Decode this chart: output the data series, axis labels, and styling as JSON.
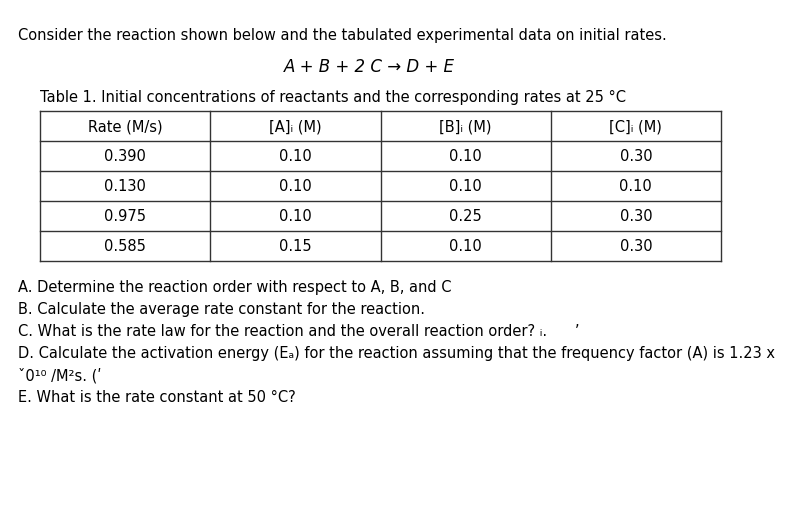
{
  "intro_text": "Consider the reaction shown below and the tabulated experimental data on initial rates.",
  "reaction": "A + B + 2 C → D + E",
  "table_title": "Table 1. Initial concentrations of reactants and the corresponding rates at 25 °C",
  "col_headers": [
    "Rate (M/s)",
    "[A]ᵢ (M)",
    "[B]ᵢ (M)",
    "[C]ᵢ (M)"
  ],
  "table_data": [
    [
      "0.390",
      "0.10",
      "0.10",
      "0.30"
    ],
    [
      "0.130",
      "0.10",
      "0.10",
      "0.10"
    ],
    [
      "0.975",
      "0.10",
      "0.25",
      "0.30"
    ],
    [
      "0.585",
      "0.15",
      "0.10",
      "0.30"
    ]
  ],
  "q_A": "A. Determine the reaction order with respect to A, B, and C",
  "q_B": "B. Calculate the average rate constant for the reaction.",
  "q_C": "C. What is the rate law for the reaction and the overall reaction order? ᵢ.      ’",
  "q_D1": "D. Calculate the activation energy (Eₐ) for the reaction assuming that the frequency factor (A) is 1.23 x",
  "q_D2": "ˇ0¹⁰ /M²s. (ʹ",
  "q_E": "E. What is the rate constant at 50 °C?",
  "bg_color": "#ffffff",
  "text_color": "#000000",
  "border_color": "#333333",
  "fs_intro": 10.5,
  "fs_reaction": 12,
  "fs_table_title": 10.5,
  "fs_table_header": 10.5,
  "fs_table_data": 10.5,
  "fs_questions": 10.5
}
